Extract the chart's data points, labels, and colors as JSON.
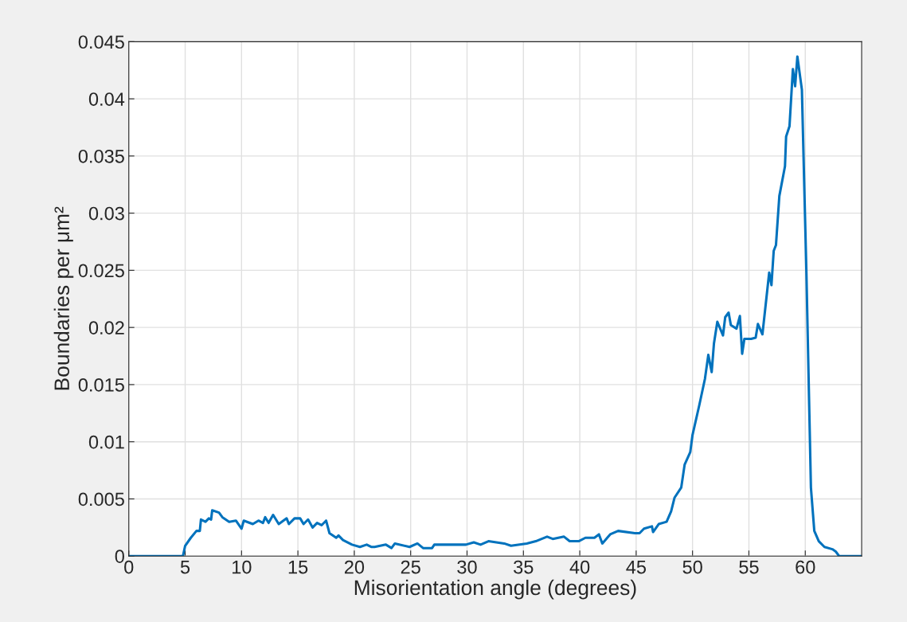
{
  "chart_data": {
    "type": "line",
    "xlabel": "Misorientation angle (degrees)",
    "ylabel": "Boundaries per μm²",
    "xlim": [
      0,
      65
    ],
    "xticks": [
      0,
      5,
      10,
      15,
      20,
      25,
      30,
      35,
      40,
      45,
      50,
      55,
      60
    ],
    "ylim": [
      0,
      0.045
    ],
    "yticks": [
      0,
      0.005,
      0.01,
      0.015,
      0.02,
      0.025,
      0.03,
      0.035,
      0.04,
      0.045
    ],
    "grid": true,
    "marker": "none",
    "line_style": "solid",
    "series": [
      {
        "color": "#0072bd",
        "x": [
          0,
          4.8,
          5.0,
          5.5,
          6.0,
          6.3,
          6.4,
          6.8,
          7.1,
          7.3,
          7.4,
          8.0,
          8.3,
          8.9,
          9.5,
          10.0,
          10.2,
          11.0,
          11.5,
          11.9,
          12.1,
          12.4,
          12.8,
          13.3,
          14.0,
          14.2,
          14.7,
          15.2,
          15.5,
          15.9,
          16.3,
          16.7,
          17.1,
          17.5,
          17.8,
          18.4,
          18.6,
          19.0,
          19.8,
          20.5,
          21.1,
          21.5,
          21.8,
          22.8,
          23.3,
          23.6,
          24.9,
          25.6,
          26.1,
          26.9,
          27.1,
          28.6,
          29.9,
          30.6,
          31.2,
          31.9,
          33.3,
          33.9,
          35.3,
          36.1,
          37.1,
          37.6,
          38.6,
          39.1,
          39.9,
          40.5,
          41.3,
          41.7,
          42.0,
          42.7,
          43.4,
          44.9,
          45.3,
          45.7,
          46.4,
          46.5,
          47.0,
          47.7,
          48.1,
          48.4,
          49.0,
          49.3,
          49.8,
          50.0,
          50.6,
          51.1,
          51.4,
          51.7,
          51.9,
          52.2,
          52.7,
          52.9,
          53.2,
          53.4,
          53.9,
          54.2,
          54.4,
          54.6,
          55.2,
          55.6,
          55.8,
          56.2,
          56.8,
          57.0,
          57.2,
          57.4,
          57.7,
          58.2,
          58.3,
          58.6,
          58.9,
          59.1,
          59.3,
          59.7,
          60.1,
          60.5,
          60.8,
          61.2,
          61.7,
          62.4,
          62.7,
          63.0,
          65.0
        ],
        "values": [
          0,
          0,
          0.0009,
          0.0016,
          0.0022,
          0.0022,
          0.0032,
          0.003,
          0.0033,
          0.0032,
          0.004,
          0.0038,
          0.0034,
          0.003,
          0.0031,
          0.0024,
          0.0031,
          0.0028,
          0.0031,
          0.0029,
          0.0034,
          0.0029,
          0.0036,
          0.0028,
          0.0033,
          0.0028,
          0.0033,
          0.0033,
          0.0028,
          0.0032,
          0.0025,
          0.0029,
          0.0027,
          0.0031,
          0.002,
          0.0016,
          0.0018,
          0.0014,
          0.001,
          0.0008,
          0.001,
          0.0008,
          0.0008,
          0.001,
          0.0007,
          0.0011,
          0.0008,
          0.0011,
          0.0007,
          0.0007,
          0.001,
          0.001,
          0.001,
          0.0012,
          0.001,
          0.0013,
          0.0011,
          0.0009,
          0.0011,
          0.0013,
          0.0017,
          0.0015,
          0.0017,
          0.0013,
          0.0013,
          0.0016,
          0.0016,
          0.0019,
          0.0011,
          0.0019,
          0.0022,
          0.002,
          0.002,
          0.0024,
          0.0026,
          0.0021,
          0.0028,
          0.003,
          0.0039,
          0.0051,
          0.006,
          0.008,
          0.0091,
          0.0106,
          0.0132,
          0.0155,
          0.0176,
          0.0161,
          0.0186,
          0.0205,
          0.0193,
          0.0209,
          0.0213,
          0.0202,
          0.0199,
          0.021,
          0.0177,
          0.019,
          0.019,
          0.0191,
          0.0203,
          0.0194,
          0.0248,
          0.0237,
          0.0267,
          0.0272,
          0.0315,
          0.0341,
          0.0367,
          0.0376,
          0.0426,
          0.0411,
          0.0437,
          0.0408,
          0.0248,
          0.006,
          0.0022,
          0.0013,
          0.0008,
          0.0006,
          0.0004,
          0,
          0
        ]
      }
    ]
  }
}
